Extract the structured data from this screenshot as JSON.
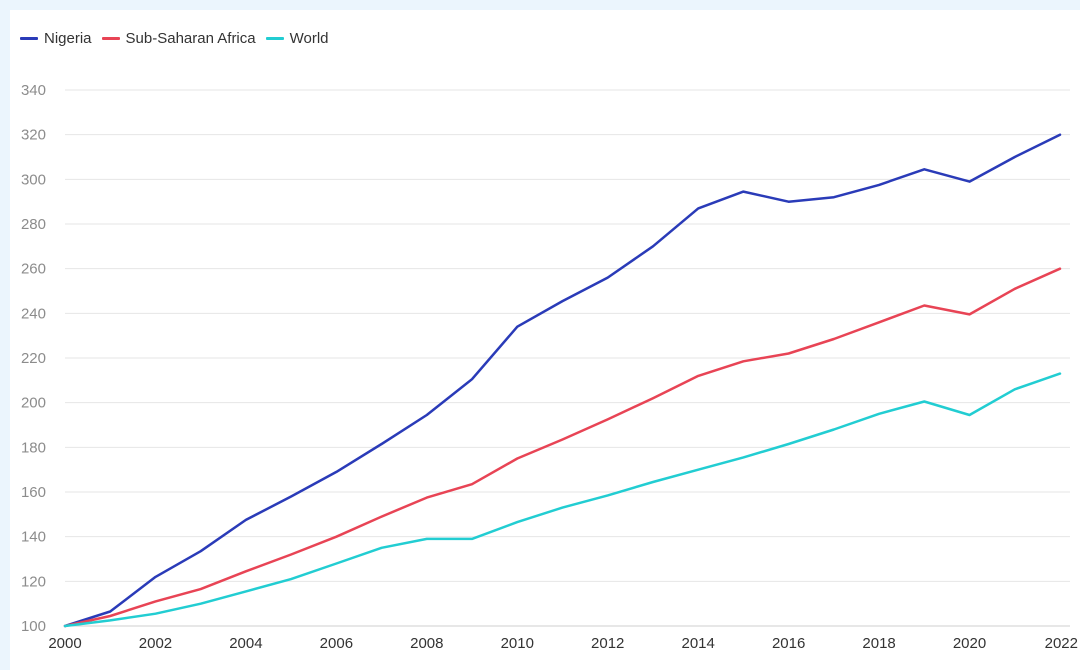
{
  "page": {
    "background": "#ebf5fd",
    "card_background": "#ffffff"
  },
  "chart_data": {
    "type": "line",
    "title": "",
    "xlabel": "",
    "ylabel": "",
    "x": [
      2000,
      2001,
      2002,
      2003,
      2004,
      2005,
      2006,
      2007,
      2008,
      2009,
      2010,
      2011,
      2012,
      2013,
      2014,
      2015,
      2016,
      2017,
      2018,
      2019,
      2020,
      2021,
      2022
    ],
    "x_ticks": [
      "2000",
      "2002",
      "2004",
      "2006",
      "2008",
      "2010",
      "2012",
      "2014",
      "2016",
      "2018",
      "2020",
      "2022"
    ],
    "ylim": [
      100,
      340
    ],
    "y_ticks": [
      "100",
      "120",
      "140",
      "160",
      "180",
      "200",
      "220",
      "240",
      "260",
      "280",
      "300",
      "320",
      "340"
    ],
    "grid": true,
    "legend_position": "top-left",
    "series": [
      {
        "name": "Nigeria",
        "color": "#2a3bb8",
        "values": [
          100,
          106.5,
          122,
          133.5,
          147.5,
          158,
          169,
          181.5,
          194.5,
          210.5,
          234,
          245.5,
          256,
          270,
          287,
          294.5,
          290,
          292,
          297.5,
          304.5,
          299,
          310,
          320
        ]
      },
      {
        "name": "Sub-Saharan Africa",
        "color": "#e84455",
        "values": [
          100,
          104.5,
          111,
          116.5,
          124.5,
          132,
          140,
          149,
          157.5,
          163.5,
          175,
          183.5,
          192.5,
          202,
          212,
          218.5,
          222,
          228.5,
          236,
          243.5,
          239.5,
          251,
          260
        ]
      },
      {
        "name": "World",
        "color": "#22cdd2",
        "values": [
          100,
          102.5,
          105.5,
          110,
          115.5,
          121,
          128,
          135,
          139,
          139,
          146.5,
          153,
          158.5,
          164.5,
          170,
          175.5,
          181.5,
          188,
          195,
          200.5,
          194.5,
          206,
          213
        ]
      }
    ]
  }
}
